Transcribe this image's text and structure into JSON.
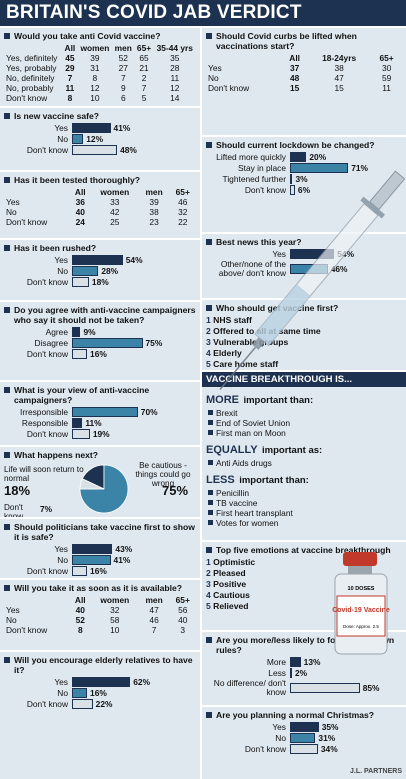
{
  "title": "BRITAIN'S COVID JAB VERDICT",
  "credit": "J.L. PARTNERS",
  "left": [
    {
      "type": "table",
      "question": "Would you take anti Covid vaccine?",
      "columns": [
        "All",
        "women",
        "men",
        "65+",
        "35-44 yrs"
      ],
      "rows": [
        {
          "label": "Yes, definitely",
          "values": [
            45,
            39,
            52,
            65,
            35
          ]
        },
        {
          "label": "Yes, probably",
          "values": [
            29,
            31,
            27,
            21,
            28
          ]
        },
        {
          "label": "No, definitely",
          "values": [
            7,
            8,
            7,
            2,
            11
          ]
        },
        {
          "label": "No, probably",
          "values": [
            11,
            12,
            9,
            7,
            12
          ]
        },
        {
          "label": "Don't know",
          "values": [
            8,
            10,
            6,
            5,
            14
          ]
        }
      ]
    },
    {
      "type": "bars",
      "question": "Is new vaccine safe?",
      "categories": [
        "Yes",
        "No",
        "Don't know"
      ],
      "values": [
        41,
        12,
        48
      ],
      "value_labels": [
        "41%",
        "12%",
        "48%"
      ],
      "colors": [
        "#1d3150",
        "#3b84a8",
        "#d9e1e7"
      ]
    },
    {
      "type": "table",
      "question": "Has it been tested thoroughly?",
      "columns": [
        "All",
        "women",
        "men",
        "65+"
      ],
      "rows": [
        {
          "label": "Yes",
          "values": [
            36,
            33,
            39,
            46
          ]
        },
        {
          "label": "No",
          "values": [
            40,
            42,
            38,
            32
          ]
        },
        {
          "label": "Don't know",
          "values": [
            24,
            25,
            23,
            22
          ]
        }
      ]
    },
    {
      "type": "bars",
      "question": "Has it been rushed?",
      "categories": [
        "Yes",
        "No",
        "Don't know"
      ],
      "values": [
        54,
        28,
        18
      ],
      "value_labels": [
        "54%",
        "28%",
        "18%"
      ],
      "colors": [
        "#1d3150",
        "#3b84a8",
        "#d9e1e7"
      ]
    },
    {
      "type": "bars",
      "question": "Do you agree with anti-vaccine campaigners who say it should not be taken?",
      "categories": [
        "Agree",
        "Disagree",
        "Don't know"
      ],
      "values": [
        9,
        75,
        16
      ],
      "value_labels": [
        "9%",
        "75%",
        "16%"
      ],
      "colors": [
        "#1d3150",
        "#3b84a8",
        "#d9e1e7"
      ]
    },
    {
      "type": "bars",
      "question": "What is your view of anti-vaccine campaigners?",
      "categories": [
        "Irresponsible",
        "Responsible",
        "Don't know"
      ],
      "values": [
        70,
        11,
        19
      ],
      "value_labels": [
        "70%",
        "11%",
        "19%"
      ],
      "colors": [
        "#3b84a8",
        "#1d3150",
        "#d9e1e7"
      ]
    },
    {
      "type": "pie",
      "question": "What happens next?",
      "categories": [
        "Life will soon return to normal",
        "Be cautious - things could go wrong",
        "Don't know"
      ],
      "values": [
        18,
        75,
        7
      ],
      "value_labels": [
        "18%",
        "75%",
        "7%"
      ],
      "colors": [
        "#1d3150",
        "#3b84a8",
        "#d9e1e7"
      ]
    },
    {
      "type": "bars",
      "question": "Should politicians take vaccine first to show it is safe?",
      "categories": [
        "Yes",
        "No",
        "Don't know"
      ],
      "values": [
        43,
        41,
        16
      ],
      "value_labels": [
        "43%",
        "41%",
        "16%"
      ],
      "colors": [
        "#1d3150",
        "#3b84a8",
        "#d9e1e7"
      ]
    },
    {
      "type": "table",
      "question": "Will you take it as soon as it is available?",
      "columns": [
        "All",
        "women",
        "men",
        "65+"
      ],
      "rows": [
        {
          "label": "Yes",
          "values": [
            40,
            32,
            47,
            56
          ]
        },
        {
          "label": "No",
          "values": [
            52,
            58,
            46,
            40
          ]
        },
        {
          "label": "Don't know",
          "values": [
            8,
            10,
            7,
            3
          ]
        }
      ]
    },
    {
      "type": "bars",
      "question": "Will you encourage elderly relatives to have it?",
      "categories": [
        "Yes",
        "No",
        "Don't know"
      ],
      "values": [
        62,
        16,
        22
      ],
      "value_labels": [
        "62%",
        "16%",
        "22%"
      ],
      "colors": [
        "#1d3150",
        "#3b84a8",
        "#d9e1e7"
      ]
    }
  ],
  "right": [
    {
      "type": "table",
      "question": "Should Covid curbs be lifted when vaccinations start?",
      "columns": [
        "All",
        "18-24yrs",
        "65+"
      ],
      "rows": [
        {
          "label": "Yes",
          "values": [
            37,
            38,
            30
          ]
        },
        {
          "label": "No",
          "values": [
            48,
            47,
            59
          ]
        },
        {
          "label": "Don't know",
          "values": [
            15,
            15,
            11
          ]
        }
      ]
    },
    {
      "type": "bars",
      "question": "Should current lockdown be changed?",
      "categories": [
        "Lifted more quickly",
        "Stay in place",
        "Tightened further",
        "Don't know"
      ],
      "values": [
        20,
        71,
        3,
        6
      ],
      "value_labels": [
        "20%",
        "71%",
        "3%",
        "6%"
      ],
      "colors": [
        "#1d3150",
        "#3b84a8",
        "#d9e1e7",
        "#d9e1e7"
      ]
    },
    {
      "type": "bars",
      "question": "Best news this year?",
      "categories": [
        "Yes",
        "Other/none of the above/ don't know"
      ],
      "values": [
        54,
        46
      ],
      "value_labels": [
        "54%",
        "46%"
      ],
      "colors": [
        "#1d3150",
        "#3b84a8"
      ]
    },
    {
      "type": "list",
      "question": "Who should get vaccine first?",
      "items": [
        {
          "n": 1,
          "text": "NHS staff"
        },
        {
          "n": 2,
          "text": "Offered to all at same time"
        },
        {
          "n": 3,
          "text": "Vulnerable groups"
        },
        {
          "n": 4,
          "text": "Elderly"
        },
        {
          "n": 5,
          "text": "Care home staff"
        }
      ]
    },
    {
      "type": "breakthrough",
      "heading": "VACCINE BREAKTHROUGH IS...",
      "groups": [
        {
          "lead": "MORE",
          "rest": "important than:",
          "items": [
            "Brexit",
            "End of Soviet Union",
            "First man on Moon"
          ]
        },
        {
          "lead": "EQUALLY",
          "rest": "important as:",
          "items": [
            "Anti Aids drugs"
          ]
        },
        {
          "lead": "LESS",
          "rest": "important than:",
          "items": [
            "Penicillin",
            "TB vaccine",
            "First heart transplant",
            "Votes for women"
          ]
        }
      ]
    },
    {
      "type": "list",
      "question": "Top five emotions at vaccine breakthrough",
      "items": [
        {
          "n": 1,
          "text": "Optimistic"
        },
        {
          "n": 2,
          "text": "Pleased"
        },
        {
          "n": 3,
          "text": "Positive"
        },
        {
          "n": 4,
          "text": "Cautious"
        },
        {
          "n": 5,
          "text": "Relieved"
        }
      ]
    },
    {
      "type": "bars",
      "question": "Are you more/less likely to follow lockdown rules?",
      "categories": [
        "More",
        "Less",
        "No difference/ don't know"
      ],
      "values": [
        13,
        2,
        85
      ],
      "value_labels": [
        "13%",
        "2%",
        "85%"
      ],
      "colors": [
        "#1d3150",
        "#3b84a8",
        "#d9e1e7"
      ]
    },
    {
      "type": "bars",
      "question": "Are you planning a normal Christmas?",
      "categories": [
        "Yes",
        "No",
        "Don't know"
      ],
      "values": [
        35,
        31,
        34
      ],
      "value_labels": [
        "35%",
        "31%",
        "34%"
      ],
      "colors": [
        "#1d3150",
        "#3b84a8",
        "#d9e1e7"
      ]
    }
  ],
  "vial": {
    "doses": "10 DOSES",
    "name": "Covid-19 Vaccine",
    "dose": "Dose: Approx. 2.5"
  }
}
